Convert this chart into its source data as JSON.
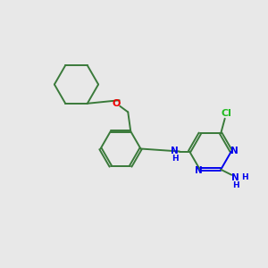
{
  "background_color": "#e8e8e8",
  "bond_color": "#3a7a3a",
  "nitrogen_color": "#0000ee",
  "oxygen_color": "#ee0000",
  "chlorine_color": "#22bb22",
  "figsize": [
    3.0,
    3.0
  ],
  "dpi": 100,
  "lw": 1.4,
  "fs": 7.5,
  "xlim": [
    0,
    10
  ],
  "ylim": [
    0,
    10
  ]
}
